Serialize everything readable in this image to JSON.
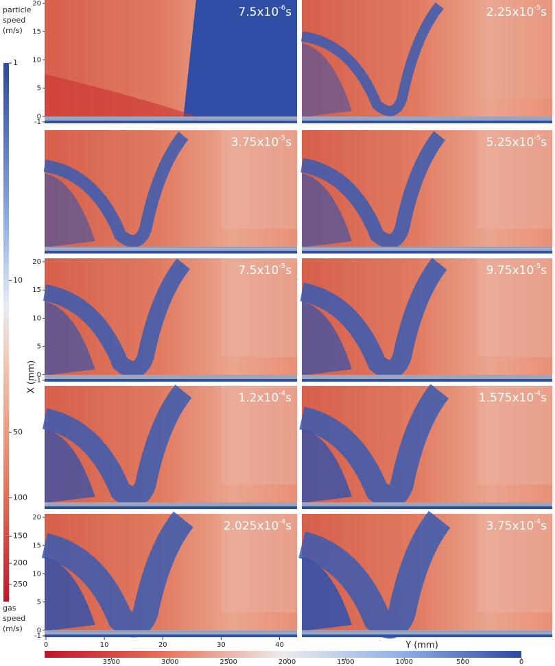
{
  "particle_speed_colorbar": {
    "title": [
      "particle",
      "speed",
      "(m/s)"
    ],
    "scale": "log",
    "lim": [
      1,
      300
    ],
    "ticks": [
      1,
      10,
      50,
      100,
      150,
      200,
      250
    ]
  },
  "gas_speed_colorbar": {
    "title": [
      "gas",
      "speed",
      "(m/s)"
    ],
    "lim": [
      4070,
      0
    ],
    "ticks": [
      3500,
      3000,
      2500,
      2000,
      1500,
      1000,
      500,
      0
    ]
  },
  "vertical_axis": {
    "label": "X (mm)",
    "lim": [
      -1,
      20
    ],
    "ticks": [
      20,
      15,
      10,
      5,
      0,
      -1
    ]
  },
  "horizontal_axis": {
    "label": "Y (mm)",
    "lim": [
      0,
      43
    ],
    "ticks": [
      0,
      10,
      20,
      30,
      40
    ]
  },
  "panels": [
    {
      "base": "7.5x10",
      "exponent": "-6",
      "unit": "s"
    },
    {
      "base": "2.25x10",
      "exponent": "-5",
      "unit": "s"
    },
    {
      "base": "3.75x10",
      "exponent": "-5",
      "unit": "s"
    },
    {
      "base": "5.25x10",
      "exponent": "-5",
      "unit": "s"
    },
    {
      "base": "7.5x10",
      "exponent": "-5",
      "unit": "s"
    },
    {
      "base": "9.75x10",
      "exponent": "-5",
      "unit": "s"
    },
    {
      "base": "1.2x10",
      "exponent": "-4",
      "unit": "s"
    },
    {
      "base": "1.575x10",
      "exponent": "-4",
      "unit": "s"
    },
    {
      "base": "2.025x10",
      "exponent": "-4",
      "unit": "s"
    },
    {
      "base": "3.75x10",
      "exponent": "-4",
      "unit": "s"
    }
  ]
}
